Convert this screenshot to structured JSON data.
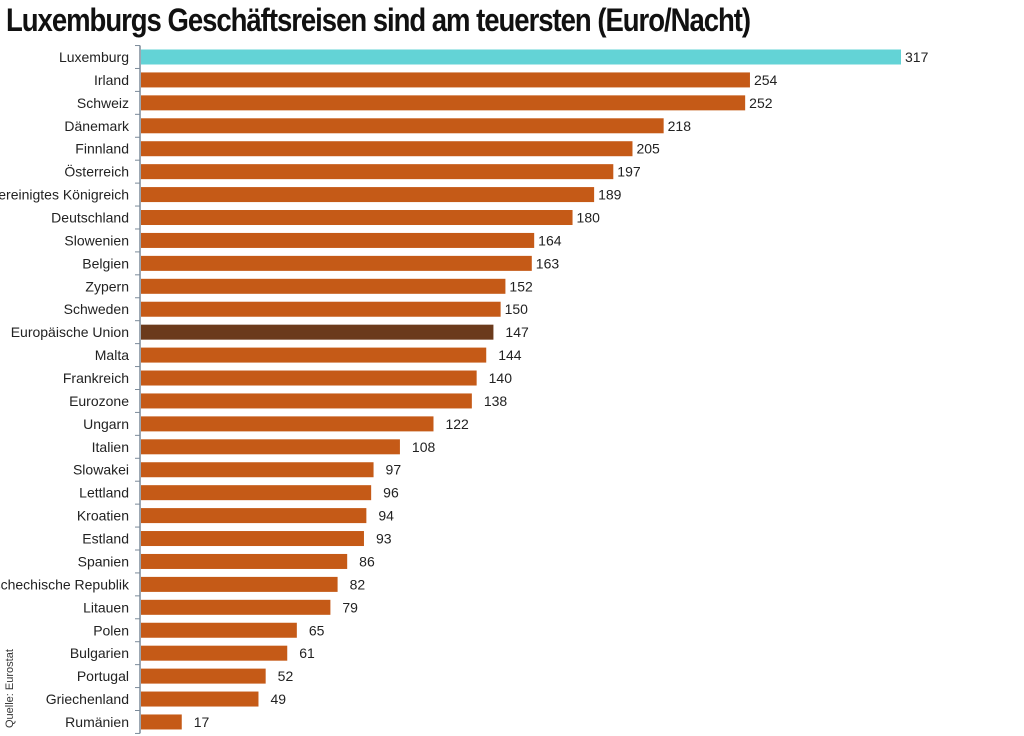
{
  "chart_data": {
    "type": "bar",
    "orientation": "horizontal",
    "title": "Luxemburgs Geschäftsreisen sind am teuersten (Euro/Nacht)",
    "xlabel": "",
    "ylabel": "",
    "xlim": [
      0,
      317
    ],
    "grid": false,
    "source": "Quelle: Eurostat",
    "categories": [
      "Luxemburg",
      "Irland",
      "Schweiz",
      "Dänemark",
      "Finnland",
      "Österreich",
      "Vereinigtes Königreich",
      "Deutschland",
      "Slowenien",
      "Belgien",
      "Zypern",
      "Schweden",
      "Europäische Union",
      "Malta",
      "Frankreich",
      "Eurozone",
      "Ungarn",
      "Italien",
      "Slowakei",
      "Lettland",
      "Kroatien",
      "Estland",
      "Spanien",
      "Tschechische Republik",
      "Litauen",
      "Polen",
      "Bulgarien",
      "Portugal",
      "Griechenland",
      "Rumänien"
    ],
    "values": [
      317,
      254,
      252,
      218,
      205,
      197,
      189,
      180,
      164,
      163,
      152,
      150,
      147,
      144,
      140,
      138,
      122,
      108,
      97,
      96,
      94,
      93,
      86,
      82,
      79,
      65,
      61,
      52,
      49,
      17
    ],
    "highlight": {
      "Luxemburg": "#63d3d6",
      "Europäische Union": "#6b3a1c"
    },
    "colors": {
      "default": "#c55a17",
      "axis": "#7b8a99"
    }
  }
}
